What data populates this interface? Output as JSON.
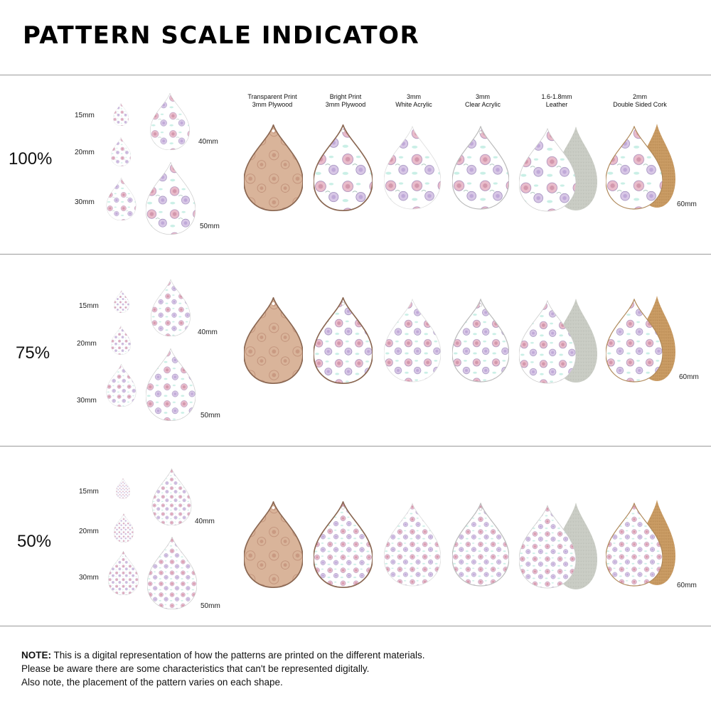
{
  "title": "PATTERN SCALE INDICATOR",
  "materials": [
    {
      "line1": "Transparent Print",
      "line2": "3mm Plywood"
    },
    {
      "line1": "Bright Print",
      "line2": "3mm Plywood"
    },
    {
      "line1": "3mm",
      "line2": "White Acrylic"
    },
    {
      "line1": "3mm",
      "line2": "Clear Acrylic"
    },
    {
      "line1": "1.6-1.8mm",
      "line2": "Leather"
    },
    {
      "line1": "2mm",
      "line2": "Double Sided Cork"
    }
  ],
  "sections": [
    {
      "scale": "100%",
      "sizes": [
        "15mm",
        "20mm",
        "30mm",
        "40mm",
        "50mm"
      ],
      "large_size": "60mm"
    },
    {
      "scale": "75%",
      "sizes": [
        "15mm",
        "20mm",
        "30mm",
        "40mm",
        "50mm"
      ],
      "large_size": "60mm"
    },
    {
      "scale": "50%",
      "sizes": [
        "15mm",
        "20mm",
        "30mm",
        "40mm",
        "50mm"
      ],
      "large_size": "60mm"
    }
  ],
  "note": {
    "label": "NOTE:",
    "line1": " This is a digital representation of how the patterns are printed on the different materials.",
    "line2": "Please be aware there are some characteristics that can't be represented digitally.",
    "line3": "Also note, the placement of the pattern varies on each shape."
  },
  "colors": {
    "plywood": "#d9b49a",
    "floral_pink": "#e7b5c4",
    "floral_purple": "#b9a6d2",
    "mint": "#c9efe6",
    "leather_back": "#c9ccc4",
    "cork": "#c89a62",
    "rule": "#9a9a9a"
  }
}
